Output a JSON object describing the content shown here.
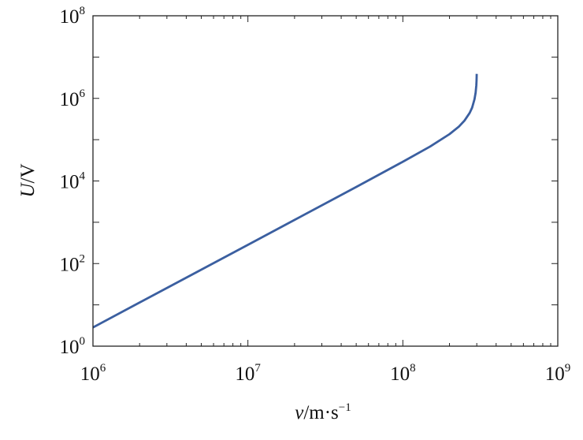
{
  "chart_data": {
    "type": "line",
    "x_scale": "log",
    "y_scale": "log",
    "xlim": [
      1000000,
      1000000000
    ],
    "ylim": [
      1,
      100000000
    ],
    "grid": false,
    "xlabel": {
      "var": "v",
      "unit": "/m·s",
      "unit_exp": "−1"
    },
    "ylabel": {
      "var": "U",
      "unit": "/V"
    },
    "x_ticks": [
      {
        "base": "10",
        "exp": "6"
      },
      {
        "base": "10",
        "exp": "7"
      },
      {
        "base": "10",
        "exp": "8"
      },
      {
        "base": "10",
        "exp": "9"
      }
    ],
    "y_ticks": [
      {
        "base": "10",
        "exp": "0"
      },
      {
        "base": "10",
        "exp": "2"
      },
      {
        "base": "10",
        "exp": "4"
      },
      {
        "base": "10",
        "exp": "6"
      },
      {
        "base": "10",
        "exp": "8"
      }
    ],
    "series": [
      {
        "color": "#3b5fa0",
        "x": [
          1000000,
          2000000,
          5000000,
          10000000,
          20000000,
          50000000,
          100000000,
          150000000,
          200000000,
          230000000,
          250000000,
          270000000,
          280000000,
          290000000,
          295000000,
          298000000,
          299000000,
          299500000,
          299700000
        ],
        "y": [
          2.84,
          11.4,
          71.1,
          284,
          1140,
          7150,
          29200,
          68200,
          136000,
          207000,
          290000,
          445000,
          597000,
          951000,
          1380000,
          2080000,
          2680000,
          3380000,
          3920000
        ]
      }
    ]
  }
}
